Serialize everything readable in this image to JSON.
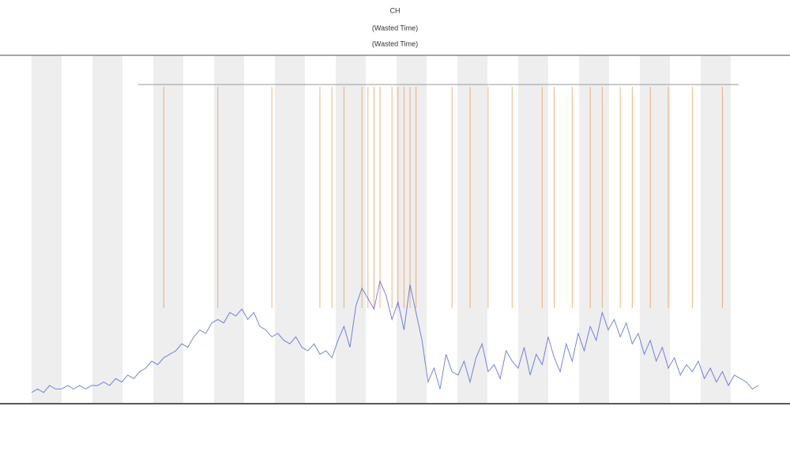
{
  "chart_data": {
    "type": "line",
    "title": "CH",
    "subtitle": "(Wasted Time)",
    "subtitle2": "(Wasted Time)",
    "ylim": [
      0,
      100
    ],
    "xlim": [
      0,
      121
    ],
    "series": [
      {
        "color": "#4a5bd6",
        "values": [
          3,
          4,
          3,
          5,
          4,
          4,
          5,
          4,
          5,
          4,
          5,
          5,
          6,
          5,
          7,
          6,
          8,
          7,
          9,
          10,
          12,
          11,
          13,
          14,
          15,
          17,
          16,
          19,
          21,
          20,
          23,
          24,
          23,
          26,
          25,
          27,
          24,
          26,
          22,
          21,
          19,
          20,
          18,
          17,
          19,
          16,
          15,
          17,
          14,
          15,
          13,
          18,
          22,
          16,
          28,
          33,
          30,
          27,
          35,
          31,
          24,
          29,
          21,
          34,
          26,
          18,
          6,
          10,
          4,
          14,
          9,
          8,
          12,
          6,
          13,
          17,
          9,
          11,
          7,
          15,
          12,
          10,
          16,
          8,
          14,
          11,
          19,
          13,
          9,
          17,
          12,
          20,
          15,
          22,
          18,
          26,
          21,
          24,
          19,
          23,
          17,
          20,
          14,
          18,
          12,
          16,
          10,
          13,
          8,
          11,
          9,
          12,
          7,
          10,
          6,
          9,
          5,
          8,
          7,
          6,
          4,
          5
        ]
      }
    ],
    "event_x": [
      22,
      31,
      40,
      48,
      50,
      52,
      55,
      56,
      57,
      58,
      60,
      61,
      62,
      63,
      64,
      70,
      73,
      76,
      80,
      85,
      87,
      90,
      93,
      95,
      98,
      100,
      103,
      106,
      110,
      115
    ],
    "event_color": "#e8822a"
  }
}
